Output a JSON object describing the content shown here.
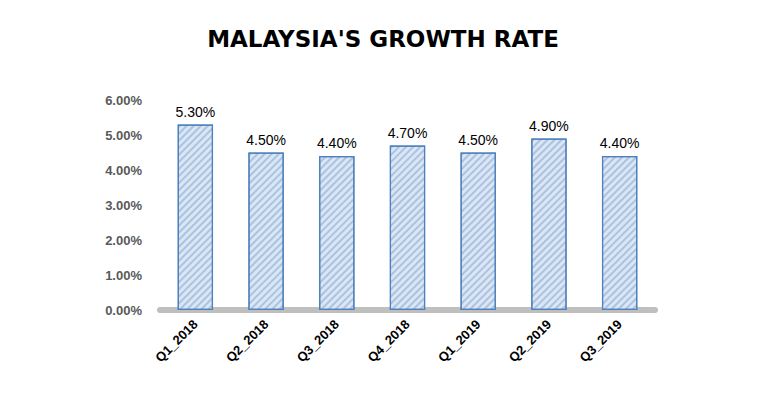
{
  "chart_data": {
    "type": "bar",
    "title": "MALAYSIA'S GROWTH RATE",
    "categories": [
      "Q1_2018",
      "Q2_2018",
      "Q3_2018",
      "Q4_2018",
      "Q1_2019",
      "Q2_2019",
      "Q3_2019"
    ],
    "values": [
      5.3,
      4.5,
      4.4,
      4.7,
      4.5,
      4.9,
      4.4
    ],
    "value_labels": [
      "5.30%",
      "4.50%",
      "4.40%",
      "4.70%",
      "4.50%",
      "4.90%",
      "4.40%"
    ],
    "color": "#dbe6f4",
    "ylim": [
      0,
      6
    ],
    "yticks": [
      {
        "value": 0,
        "label": "0.00%"
      },
      {
        "value": 1,
        "label": "1.00%"
      },
      {
        "value": 2,
        "label": "2.00%"
      },
      {
        "value": 3,
        "label": "3.00%"
      },
      {
        "value": 4,
        "label": "4.00%"
      },
      {
        "value": 5,
        "label": "5.00%"
      },
      {
        "value": 6,
        "label": "6.00%"
      }
    ],
    "grid": false,
    "data_labels": true
  }
}
